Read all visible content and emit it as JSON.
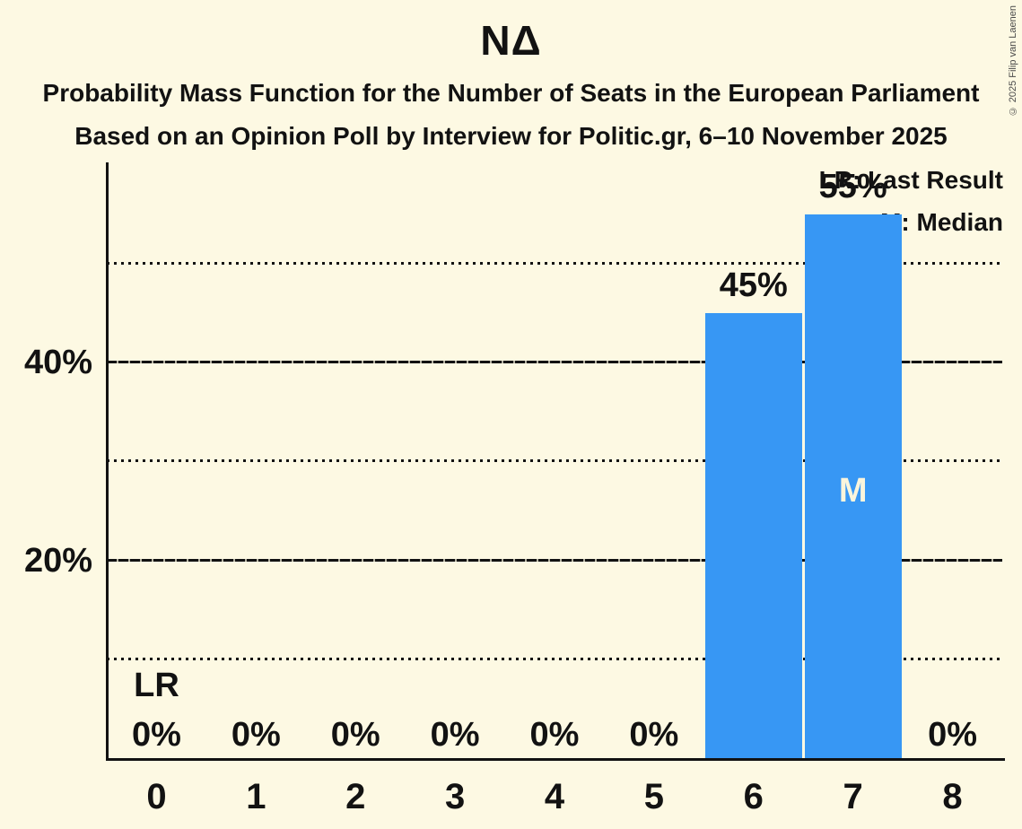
{
  "header": {
    "title": "NΔ",
    "subtitle1": "Probability Mass Function for the Number of Seats in the European Parliament",
    "subtitle2": "Based on an Opinion Poll by Interview for Politic.gr, 6–10 November 2025"
  },
  "legend": {
    "last_result": "LR: Last Result",
    "median": "M: Median",
    "position": "top-right"
  },
  "copyright": "© 2025 Filip van Laenen",
  "colors": {
    "background": "#FDF9E3",
    "bar": "#3797F4",
    "text": "#121212",
    "median_letter": "#FAF5DC"
  },
  "chart_data": {
    "type": "bar",
    "title": "NΔ",
    "categories": [
      "0",
      "1",
      "2",
      "3",
      "4",
      "5",
      "6",
      "7",
      "8"
    ],
    "values": [
      0,
      0,
      0,
      0,
      0,
      0,
      45,
      55,
      0
    ],
    "unit": "%",
    "ylim": [
      0,
      60
    ],
    "ytick_values": [
      20,
      40
    ],
    "ytick_labels": [
      "20%",
      "40%"
    ],
    "solid_gridlines": [
      20,
      40
    ],
    "dotted_gridlines": [
      10,
      30,
      50
    ],
    "grid": true,
    "legend_position": "top-right",
    "last_result_category": "0",
    "median_category": "7",
    "lr_marker": "LR",
    "median_marker": "M"
  }
}
